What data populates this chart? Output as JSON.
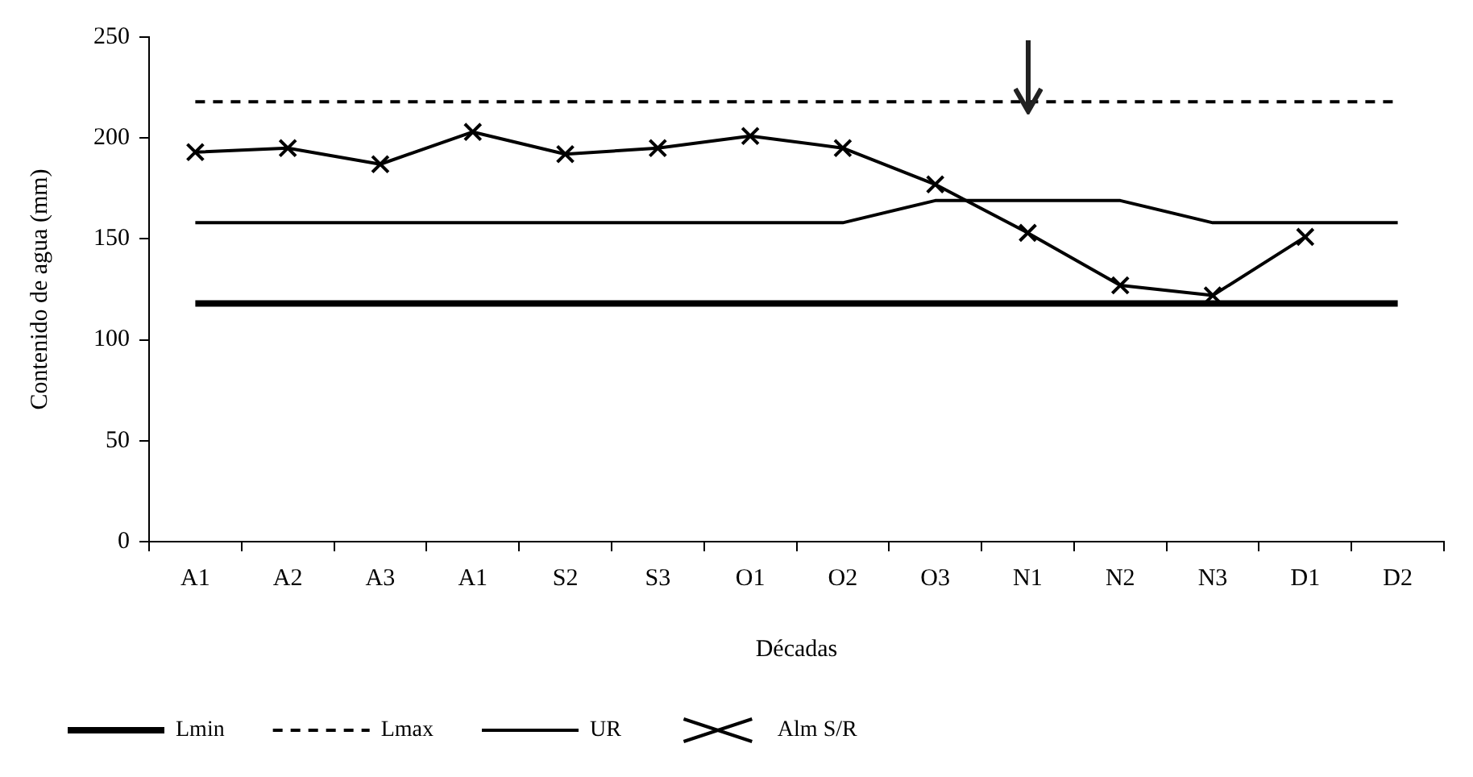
{
  "chart_data": {
    "type": "line",
    "xlabel": "Décadas",
    "ylabel": "Contenido de agua (mm)",
    "categories": [
      "A1",
      "A2",
      "A3",
      "A1",
      "S2",
      "S3",
      "O1",
      "O2",
      "O3",
      "N1",
      "N2",
      "N3",
      "D1",
      "D2"
    ],
    "ylim": [
      0,
      250
    ],
    "yticks": [
      0,
      50,
      100,
      150,
      200,
      250
    ],
    "grid": false,
    "legend": "bottom left",
    "series": [
      {
        "name": "Lmin",
        "color": "#000000",
        "line_style": "solid",
        "marker": "none",
        "values": [
          118,
          118,
          118,
          118,
          118,
          118,
          118,
          118,
          118,
          118,
          118,
          118,
          118,
          118
        ]
      },
      {
        "name": "Lmax",
        "color": "#000000",
        "line_style": "dashed",
        "marker": "none",
        "values": [
          218,
          218,
          218,
          218,
          218,
          218,
          218,
          218,
          218,
          218,
          218,
          218,
          218,
          218
        ]
      },
      {
        "name": "UR",
        "color": "#000000",
        "line_style": "solid",
        "marker": "none",
        "values": [
          158,
          158,
          158,
          158,
          158,
          158,
          158,
          158,
          169,
          169,
          169,
          158,
          158,
          158
        ]
      },
      {
        "name": "Alm S/R",
        "color": "#000000",
        "line_style": "solid",
        "marker": "cross",
        "values": [
          193,
          195,
          187,
          203,
          192,
          195,
          201,
          195,
          177,
          153,
          127,
          122,
          151,
          null
        ]
      }
    ]
  }
}
